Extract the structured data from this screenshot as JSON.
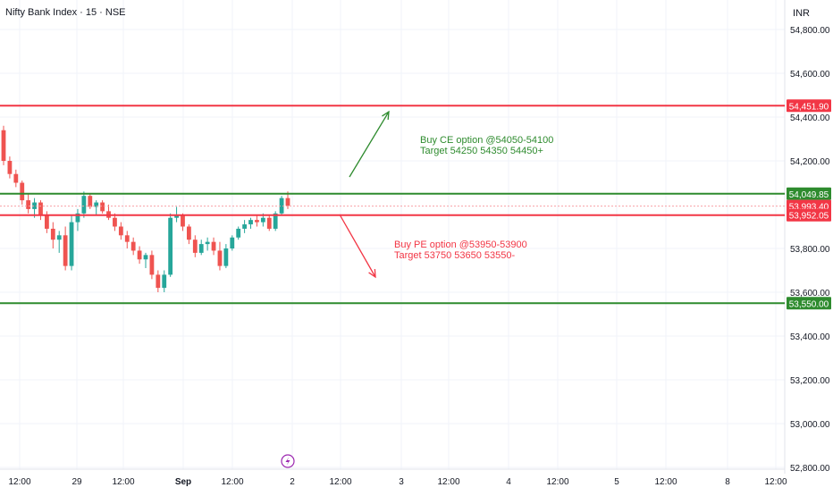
{
  "header": {
    "title": "Nifty Bank Index · 15 · NSE",
    "currency": "INR"
  },
  "colors": {
    "up": "#26a69a",
    "down": "#ef5350",
    "resistance": "#f23645",
    "support": "#2e8b2e",
    "text_green": "#2e8b2e",
    "text_red": "#f23645",
    "event": "#9c27b0"
  },
  "chart_data": {
    "type": "candlestick",
    "title": "Nifty Bank Index · 15 · NSE",
    "y_axis": {
      "unit": "INR",
      "range": [
        52700,
        54880
      ],
      "ticks": [
        "54,800.00",
        "54,600.00",
        "54,400.00",
        "54,200.00",
        "53,800.00",
        "53,600.00",
        "53,400.00",
        "53,200.00",
        "53,000.00",
        "52,800.00"
      ],
      "tick_values": [
        54800,
        54600,
        54400,
        54200,
        53800,
        53600,
        53400,
        53200,
        53000,
        52800
      ]
    },
    "x_axis": {
      "labels": [
        "12:00",
        "29",
        "12:00",
        "Sep",
        "12:00",
        "2",
        "12:00",
        "3",
        "12:00",
        "4",
        "12:00",
        "5",
        "12:00",
        "8",
        "12:00"
      ]
    },
    "levels": [
      {
        "label": "54,451.90",
        "value": 54451.9,
        "role": "resistance"
      },
      {
        "label": "54,049.85",
        "value": 54049.85,
        "role": "support"
      },
      {
        "label": "53,993.40",
        "value": 53993.4,
        "role": "last-price"
      },
      {
        "label": "53,952.05",
        "value": 53952.05,
        "role": "resistance"
      },
      {
        "label": "53,550.00",
        "value": 53550,
        "role": "support"
      }
    ],
    "annotations": [
      {
        "lines": [
          "Buy CE option @54050-54100",
          "Target 54250 54350 54450+"
        ],
        "color": "green"
      },
      {
        "lines": [
          "Buy PE option @53950-53900",
          "Target 53750 53650 53550-"
        ],
        "color": "red"
      }
    ],
    "candles": [
      [
        54340,
        54360,
        54180,
        54200
      ],
      [
        54200,
        54220,
        54120,
        54140
      ],
      [
        54140,
        54160,
        54080,
        54100
      ],
      [
        54100,
        54110,
        54000,
        54020
      ],
      [
        54020,
        54050,
        53960,
        53980
      ],
      [
        53980,
        54030,
        53940,
        54010
      ],
      [
        54010,
        54020,
        53930,
        53950
      ],
      [
        53950,
        53970,
        53870,
        53890
      ],
      [
        53890,
        53920,
        53800,
        53840
      ],
      [
        53840,
        53880,
        53780,
        53860
      ],
      [
        53860,
        53900,
        53700,
        53720
      ],
      [
        53720,
        53950,
        53700,
        53920
      ],
      [
        53920,
        53980,
        53880,
        53960
      ],
      [
        53960,
        54060,
        53940,
        54040
      ],
      [
        54040,
        54050,
        53980,
        53990
      ],
      [
        53990,
        54020,
        53950,
        54010
      ],
      [
        54010,
        54020,
        53960,
        53970
      ],
      [
        53970,
        54000,
        53930,
        53940
      ],
      [
        53940,
        53960,
        53880,
        53900
      ],
      [
        53900,
        53920,
        53840,
        53860
      ],
      [
        53860,
        53880,
        53800,
        53830
      ],
      [
        53830,
        53850,
        53770,
        53790
      ],
      [
        53790,
        53810,
        53730,
        53750
      ],
      [
        53750,
        53780,
        53710,
        53770
      ],
      [
        53770,
        53790,
        53660,
        53680
      ],
      [
        53680,
        53700,
        53600,
        53620
      ],
      [
        53620,
        53700,
        53600,
        53680
      ],
      [
        53680,
        53960,
        53670,
        53940
      ],
      [
        53940,
        53990,
        53920,
        53950
      ],
      [
        53950,
        53960,
        53880,
        53900
      ],
      [
        53900,
        53910,
        53820,
        53840
      ],
      [
        53840,
        53860,
        53760,
        53780
      ],
      [
        53780,
        53840,
        53770,
        53820
      ],
      [
        53820,
        53850,
        53790,
        53830
      ],
      [
        53830,
        53850,
        53770,
        53790
      ],
      [
        53790,
        53830,
        53700,
        53720
      ],
      [
        53720,
        53820,
        53710,
        53800
      ],
      [
        53800,
        53860,
        53790,
        53850
      ],
      [
        53850,
        53900,
        53840,
        53890
      ],
      [
        53890,
        53930,
        53870,
        53910
      ],
      [
        53910,
        53940,
        53890,
        53930
      ],
      [
        53930,
        53950,
        53900,
        53920
      ],
      [
        53920,
        53960,
        53900,
        53940
      ],
      [
        53940,
        53950,
        53880,
        53890
      ],
      [
        53890,
        53970,
        53880,
        53960
      ],
      [
        53960,
        54040,
        53950,
        54030
      ],
      [
        54030,
        54060,
        53980,
        53995
      ]
    ]
  },
  "footer_icon": "lightning-event-icon"
}
